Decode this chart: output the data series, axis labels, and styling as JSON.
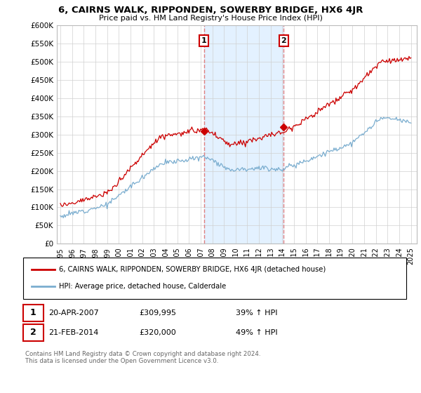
{
  "title": "6, CAIRNS WALK, RIPPONDEN, SOWERBY BRIDGE, HX6 4JR",
  "subtitle": "Price paid vs. HM Land Registry's House Price Index (HPI)",
  "legend_line1": "6, CAIRNS WALK, RIPPONDEN, SOWERBY BRIDGE, HX6 4JR (detached house)",
  "legend_line2": "HPI: Average price, detached house, Calderdale",
  "sale1_label": "1",
  "sale1_date": "20-APR-2007",
  "sale1_price": "£309,995",
  "sale1_hpi": "39% ↑ HPI",
  "sale2_label": "2",
  "sale2_date": "21-FEB-2014",
  "sale2_price": "£320,000",
  "sale2_hpi": "49% ↑ HPI",
  "copyright": "Contains HM Land Registry data © Crown copyright and database right 2024.\nThis data is licensed under the Open Government Licence v3.0.",
  "red_color": "#cc0000",
  "blue_color": "#7aadcf",
  "sale1_x": 2007.29,
  "sale1_y": 309995,
  "sale2_x": 2014.12,
  "sale2_y": 320000,
  "ylim_min": 0,
  "ylim_max": 600000,
  "xlim_min": 1994.7,
  "xlim_max": 2025.5,
  "yticks": [
    0,
    50000,
    100000,
    150000,
    200000,
    250000,
    300000,
    350000,
    400000,
    450000,
    500000,
    550000,
    600000
  ],
  "ytick_labels": [
    "£0",
    "£50K",
    "£100K",
    "£150K",
    "£200K",
    "£250K",
    "£300K",
    "£350K",
    "£400K",
    "£450K",
    "£500K",
    "£550K",
    "£600K"
  ],
  "xticks": [
    1995,
    1996,
    1997,
    1998,
    1999,
    2000,
    2001,
    2002,
    2003,
    2004,
    2005,
    2006,
    2007,
    2008,
    2009,
    2010,
    2011,
    2012,
    2013,
    2014,
    2015,
    2016,
    2017,
    2018,
    2019,
    2020,
    2021,
    2022,
    2023,
    2024,
    2025
  ],
  "shaded_x1": 2007.29,
  "shaded_x2": 2014.12,
  "background_color": "#ffffff",
  "grid_color": "#d0d0d0",
  "vline_color": "#e08080",
  "shade_color": "#ddeeff"
}
